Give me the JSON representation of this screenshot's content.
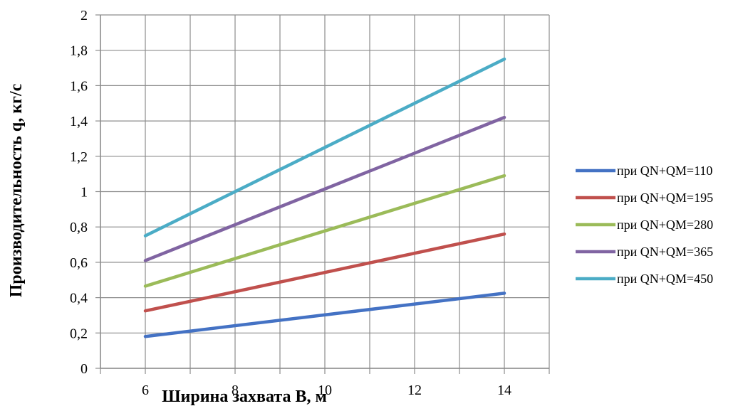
{
  "chart_data": {
    "type": "line",
    "title": "",
    "xlabel": "Ширина захвата B, м",
    "ylabel": "Производительность q, кг/с",
    "xlim": [
      5,
      15
    ],
    "ylim": [
      0,
      2
    ],
    "x_ticks": [
      6,
      8,
      10,
      12,
      14
    ],
    "x_tick_labels": [
      "6",
      "8",
      "10",
      "12",
      "14"
    ],
    "y_ticks": [
      0,
      0.2,
      0.4,
      0.6,
      0.8,
      1,
      1.2,
      1.4,
      1.6,
      1.8,
      2
    ],
    "y_tick_labels": [
      "0",
      "0,2",
      "0,4",
      "0,6",
      "0,8",
      "1",
      "1,2",
      "1,4",
      "1,6",
      "1,8",
      "2"
    ],
    "grid": true,
    "legend_position": "right",
    "x": [
      6,
      14
    ],
    "series": [
      {
        "name": "при QN+QM=110",
        "color": "#4472C4",
        "values": [
          0.18,
          0.425
        ]
      },
      {
        "name": "при QN+QM=195",
        "color": "#C0504D",
        "values": [
          0.325,
          0.76
        ]
      },
      {
        "name": "при QN+QM=280",
        "color": "#9BBB59",
        "values": [
          0.465,
          1.09
        ]
      },
      {
        "name": "при QN+QM=365",
        "color": "#8064A2",
        "values": [
          0.61,
          1.42
        ]
      },
      {
        "name": "при QN+QM=450",
        "color": "#4BACC6",
        "values": [
          0.75,
          1.75
        ]
      }
    ]
  }
}
